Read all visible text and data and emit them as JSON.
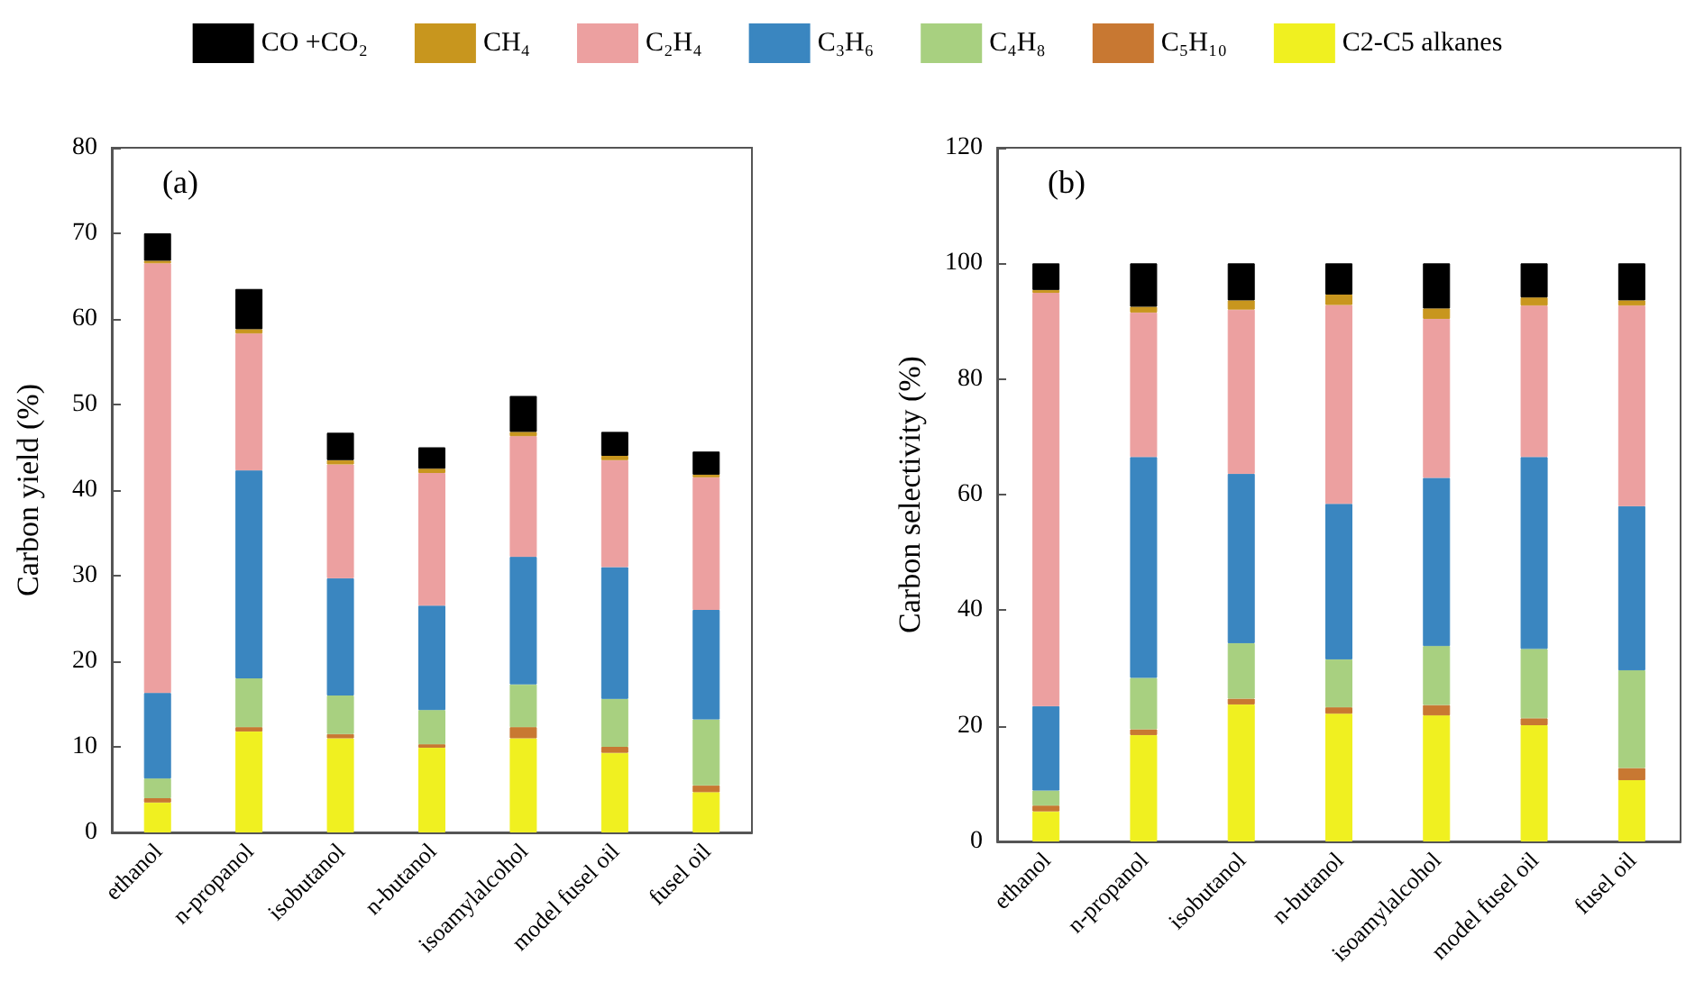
{
  "chart_data": [
    {
      "type": "bar",
      "stacked": true,
      "ylabel": "Carbon yield (%)",
      "annotations": [
        "(a)"
      ],
      "legend": "top",
      "grid": false,
      "categories": [
        "ethanol",
        "n-propanol",
        "isobutanol",
        "n-butanol",
        "isoamylalcohol",
        "model fusel oil",
        "fusel oil"
      ],
      "ylim": [
        0,
        80
      ],
      "yticks": [
        0,
        10,
        20,
        30,
        40,
        50,
        60,
        70,
        80
      ],
      "series": [
        {
          "name": "C2-C5 alkanes",
          "color": "#f0f020",
          "values": [
            3.5,
            11.8,
            11.0,
            9.9,
            11.0,
            9.3,
            4.7
          ]
        },
        {
          "name": "C₅H₁₀",
          "color": "#c87832",
          "values": [
            0.5,
            0.5,
            0.5,
            0.4,
            1.3,
            0.7,
            0.8
          ]
        },
        {
          "name": "C₄H₈",
          "color": "#a8d080",
          "values": [
            2.3,
            5.7,
            4.5,
            4.0,
            5.0,
            5.6,
            7.7
          ]
        },
        {
          "name": "C₃H₆",
          "color": "#3a86c0",
          "values": [
            10.0,
            24.3,
            13.7,
            12.2,
            14.9,
            15.4,
            12.8
          ]
        },
        {
          "name": "C₂H₄",
          "color": "#eca0a0",
          "values": [
            50.2,
            16.0,
            13.3,
            15.5,
            14.1,
            12.5,
            15.5
          ]
        },
        {
          "name": "CH₄",
          "color": "#c8961e",
          "values": [
            0.3,
            0.5,
            0.5,
            0.5,
            0.5,
            0.5,
            0.3
          ]
        },
        {
          "name": "CO +CO₂",
          "color": "#000000",
          "values": [
            3.2,
            4.7,
            3.2,
            2.5,
            4.2,
            2.8,
            2.7
          ]
        }
      ]
    },
    {
      "type": "bar",
      "stacked": true,
      "ylabel": "Carbon selectivity (%)",
      "annotations": [
        "(b)"
      ],
      "grid": false,
      "categories": [
        "ethanol",
        "n-propanol",
        "isobutanol",
        "n-butanol",
        "isoamylalcohol",
        "model fusel oil",
        "fusel oil"
      ],
      "ylim": [
        0,
        120
      ],
      "yticks": [
        0,
        20,
        40,
        60,
        80,
        100,
        120
      ],
      "series": [
        {
          "color": "#f0f020",
          "values": [
            5.2,
            18.4,
            23.7,
            22.1,
            21.8,
            20.1,
            10.6
          ]
        },
        {
          "color": "#c87832",
          "values": [
            1.0,
            1.0,
            1.0,
            1.1,
            1.8,
            1.2,
            2.1
          ]
        },
        {
          "color": "#a8d080",
          "values": [
            2.6,
            8.9,
            9.6,
            8.3,
            10.2,
            12.0,
            16.9
          ]
        },
        {
          "color": "#3a86c0",
          "values": [
            14.6,
            38.2,
            29.3,
            26.9,
            29.1,
            33.2,
            28.4
          ]
        },
        {
          "color": "#eca0a0",
          "values": [
            71.5,
            25.0,
            28.4,
            34.4,
            27.5,
            26.2,
            34.7
          ]
        },
        {
          "color": "#c8961e",
          "values": [
            0.5,
            1.0,
            1.6,
            1.8,
            1.8,
            1.4,
            0.9
          ]
        },
        {
          "color": "#000000",
          "values": [
            4.6,
            7.5,
            6.4,
            5.4,
            7.8,
            5.9,
            6.4
          ]
        }
      ]
    }
  ]
}
